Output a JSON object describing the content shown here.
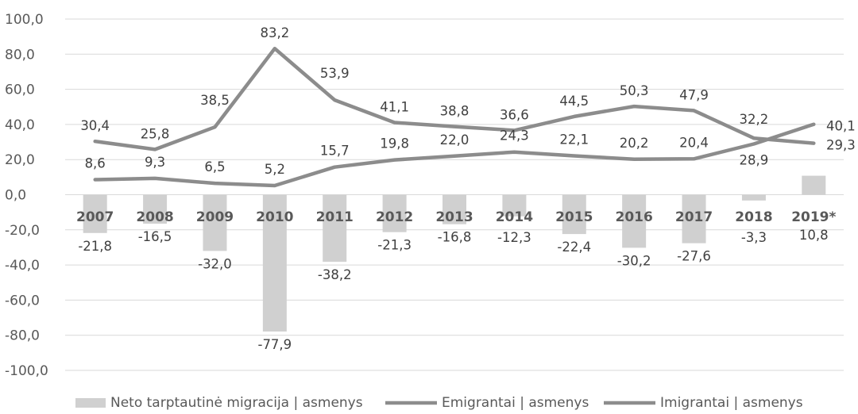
{
  "chart_data": {
    "type": "bar",
    "categories": [
      "2007",
      "2008",
      "2009",
      "2010",
      "2011",
      "2012",
      "2013",
      "2014",
      "2015",
      "2016",
      "2017",
      "2018",
      "2019*"
    ],
    "ylim": [
      -100,
      100
    ],
    "yticks": [
      "100,0",
      "80,0",
      "60,0",
      "40,0",
      "20,0",
      "0,0",
      "-20,0",
      "-40,0",
      "-60,0",
      "-80,0",
      "-100,0"
    ],
    "grid": true,
    "legend_position": "bottom",
    "series": [
      {
        "name": "Neto tarptautinė migracija | asmenys",
        "kind": "bar",
        "color": "#d0d0d0",
        "values": [
          -21.8,
          -16.5,
          -32.0,
          -77.9,
          -38.2,
          -21.3,
          -16.8,
          -12.3,
          -22.4,
          -30.2,
          -27.6,
          -3.3,
          10.8
        ],
        "labels": [
          "-21,8",
          "-16,5",
          "-32,0",
          "-77,9",
          "-38,2",
          "-21,3",
          "-16,8",
          "-12,3",
          "-22,4",
          "-30,2",
          "-27,6",
          "-3,3",
          "10,8"
        ]
      },
      {
        "name": "Emigrantai | asmenys",
        "kind": "line",
        "color": "#8c8c8c",
        "values": [
          30.4,
          25.8,
          38.5,
          83.2,
          53.9,
          41.1,
          38.8,
          36.6,
          44.5,
          50.3,
          47.9,
          32.2,
          29.3
        ],
        "labels": [
          "30,4",
          "25,8",
          "38,5",
          "83,2",
          "53,9",
          "41,1",
          "38,8",
          "36,6",
          "44,5",
          "50,3",
          "47,9",
          "32,2",
          "29,3"
        ]
      },
      {
        "name": "Imigrantai | asmenys",
        "kind": "line",
        "color": "#8c8c8c",
        "values": [
          8.6,
          9.3,
          6.5,
          5.2,
          15.7,
          19.8,
          22.0,
          24.3,
          22.1,
          20.2,
          20.4,
          28.9,
          40.1
        ],
        "labels": [
          "8,6",
          "9,3",
          "6,5",
          "5,2",
          "15,7",
          "19,8",
          "22,0",
          "24,3",
          "22,1",
          "20,2",
          "20,4",
          "28,9",
          "40,1"
        ]
      }
    ]
  }
}
